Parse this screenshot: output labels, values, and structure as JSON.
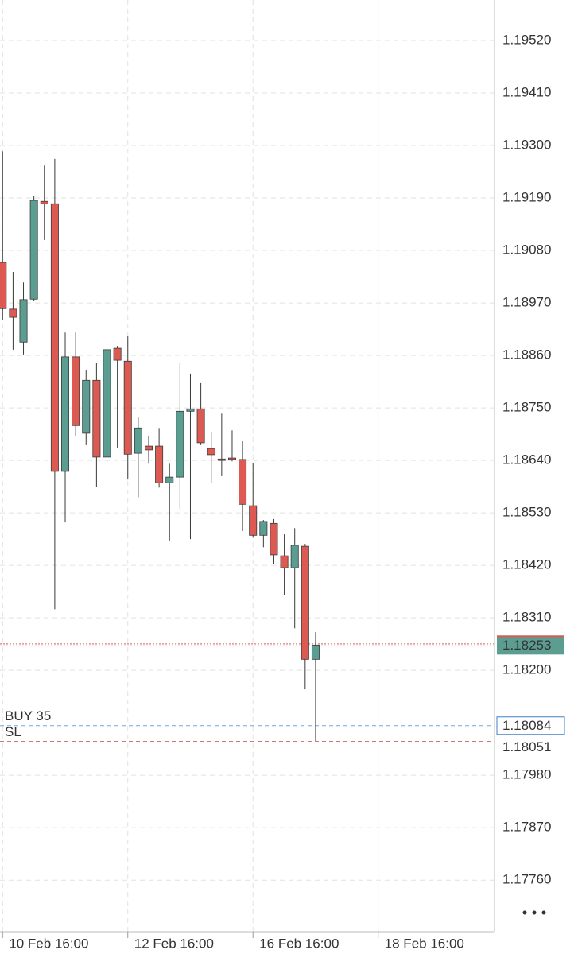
{
  "chart_data": {
    "type": "candlestick",
    "up_color": "#5b9d91",
    "down_color": "#dc5a52",
    "wick_color": "#3a3a3a",
    "open": [
      1.19055,
      1.18957,
      1.18888,
      1.18978,
      1.19183,
      1.19178,
      1.18617,
      1.18857,
      1.18697,
      1.18808,
      1.18647,
      1.18875,
      1.18848,
      1.18655,
      1.1867,
      1.1867,
      1.18593,
      1.18605,
      1.18743,
      1.18748,
      1.18665,
      1.18643,
      1.18645,
      1.18642,
      1.18545,
      1.18483,
      1.18508,
      1.1844,
      1.18415,
      1.1846,
      1.18223
    ],
    "high": [
      1.19288,
      1.19035,
      1.19013,
      1.19195,
      1.19258,
      1.19272,
      1.18908,
      1.18908,
      1.1883,
      1.18845,
      1.18878,
      1.1888,
      1.189,
      1.1873,
      1.18692,
      1.18708,
      1.18633,
      1.18845,
      1.18822,
      1.18802,
      1.187,
      1.18738,
      1.18703,
      1.1868,
      1.18635,
      1.18515,
      1.18517,
      1.18485,
      1.18498,
      1.18465,
      1.1828
    ],
    "low": [
      1.18935,
      1.18872,
      1.18862,
      1.18975,
      1.19102,
      1.18328,
      1.1851,
      1.18692,
      1.18672,
      1.18585,
      1.18525,
      1.18667,
      1.186,
      1.18563,
      1.18633,
      1.18583,
      1.18472,
      1.18538,
      1.18475,
      1.18672,
      1.18592,
      1.18607,
      1.18638,
      1.18492,
      1.18478,
      1.18458,
      1.18422,
      1.18358,
      1.18288,
      1.1816,
      1.18052
    ],
    "close": [
      1.18958,
      1.1894,
      1.18977,
      1.19185,
      1.19178,
      1.18617,
      1.18857,
      1.18713,
      1.18808,
      1.18647,
      1.18872,
      1.1885,
      1.18653,
      1.18708,
      1.18662,
      1.18593,
      1.18605,
      1.18743,
      1.18748,
      1.18677,
      1.18652,
      1.1864,
      1.18642,
      1.18548,
      1.18483,
      1.18512,
      1.18442,
      1.18415,
      1.18462,
      1.18223,
      1.18253
    ],
    "ylim": [
      1.17652,
      1.19605
    ],
    "yticks": [
      {
        "value": 1.1952,
        "label": "1.19520"
      },
      {
        "value": 1.1941,
        "label": "1.19410"
      },
      {
        "value": 1.193,
        "label": "1.19300"
      },
      {
        "value": 1.1919,
        "label": "1.19190"
      },
      {
        "value": 1.1908,
        "label": "1.19080"
      },
      {
        "value": 1.1897,
        "label": "1.18970"
      },
      {
        "value": 1.1886,
        "label": "1.18860"
      },
      {
        "value": 1.1875,
        "label": "1.18750"
      },
      {
        "value": 1.1864,
        "label": "1.18640"
      },
      {
        "value": 1.1853,
        "label": "1.18530"
      },
      {
        "value": 1.1842,
        "label": "1.18420"
      },
      {
        "value": 1.1831,
        "label": "1.18310"
      },
      {
        "value": 1.182,
        "label": "1.18200"
      },
      {
        "value": 1.1798,
        "label": "1.17980"
      },
      {
        "value": 1.1787,
        "label": "1.17870"
      },
      {
        "value": 1.1776,
        "label": "1.17760"
      }
    ],
    "xlim": [
      -0.25,
      47.15
    ],
    "xticks": [
      {
        "value": 0,
        "label": "10 Feb 16:00"
      },
      {
        "value": 12,
        "label": "12 Feb 16:00"
      },
      {
        "value": 24,
        "label": "16 Feb 16:00"
      },
      {
        "value": 36,
        "label": "18 Feb 16:00"
      }
    ],
    "grid": true,
    "price_lines": [
      {
        "value": 1.18253,
        "color": "#5b9d91",
        "style": "current"
      },
      {
        "label": "BUY 35",
        "value": 1.18084,
        "color": "#3f7fc9",
        "style": "order"
      },
      {
        "label": "SL",
        "value": 1.18051,
        "color": "#b8433a",
        "style": "stop"
      }
    ]
  }
}
